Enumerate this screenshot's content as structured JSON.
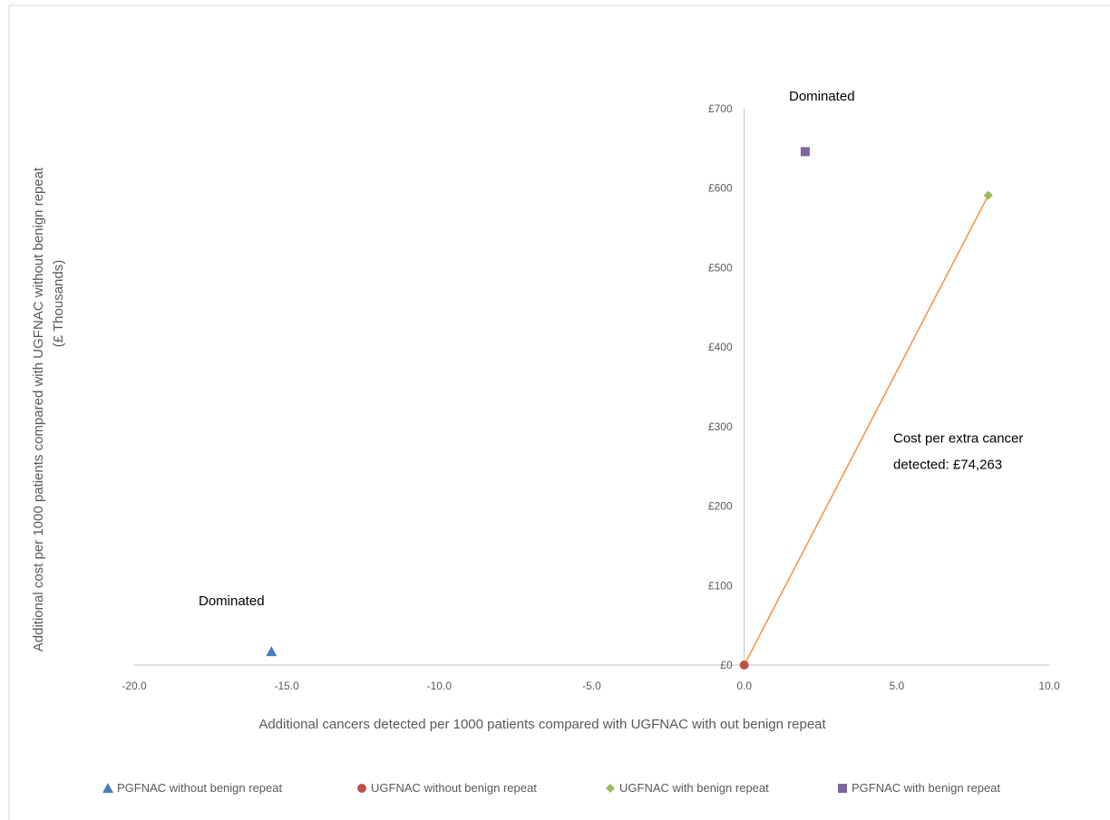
{
  "chart_data": {
    "type": "scatter",
    "title": "",
    "xlabel": "Additional cancers detected per 1000 patients compared with UGFNAC with out benign repeat",
    "ylabel": "Additional  cost per 1000 patients compared with UGFNAC without benign repeat",
    "ylabel_line2": "(£ Thousands)",
    "xlim": [
      -20,
      10
    ],
    "ylim": [
      0,
      700
    ],
    "x_ticks": [
      "-20.0",
      "-15.0",
      "-10.0",
      "-5.0",
      "0.0",
      "5.0",
      "10.0"
    ],
    "y_ticks": [
      "£0",
      "£100",
      "£200",
      "£300",
      "£400",
      "£500",
      "£600",
      "£700"
    ],
    "grid": false,
    "legend_position": "bottom",
    "series": [
      {
        "name": "PGFNAC without benign repeat",
        "marker": "triangle",
        "color": "#4a7ebb",
        "x": -15.5,
        "y": 17
      },
      {
        "name": "UGFNAC without benign repeat",
        "marker": "circle",
        "color": "#c0504d",
        "x": 0,
        "y": 0
      },
      {
        "name": "UGFNAC with benign repeat",
        "marker": "diamond",
        "color": "#9bbb59",
        "x": 8,
        "y": 591
      },
      {
        "name": "PGFNAC with benign repeat",
        "marker": "square",
        "color": "#8064a2",
        "x": 2,
        "y": 646
      }
    ],
    "frontier": {
      "color": "#f79646",
      "from": [
        0,
        0
      ],
      "to": [
        8,
        591
      ]
    },
    "annotations": [
      {
        "text": "Dominated",
        "x": 2,
        "y": 710
      },
      {
        "text": "Dominated",
        "x": -16.3,
        "y": 75
      },
      {
        "text": "Cost per extra cancer",
        "x": 10,
        "y": 280
      },
      {
        "text": "detected: £74,263",
        "x": 10,
        "y": 247
      }
    ]
  }
}
